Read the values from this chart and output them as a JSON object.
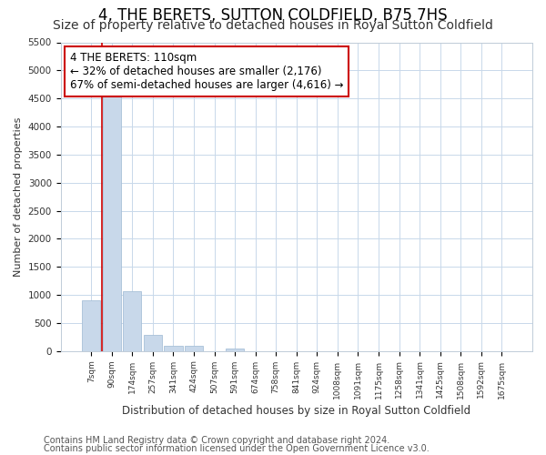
{
  "title": "4, THE BERETS, SUTTON COLDFIELD, B75 7HS",
  "subtitle": "Size of property relative to detached houses in Royal Sutton Coldfield",
  "xlabel": "Distribution of detached houses by size in Royal Sutton Coldfield",
  "ylabel": "Number of detached properties",
  "footnote1": "Contains HM Land Registry data © Crown copyright and database right 2024.",
  "footnote2": "Contains public sector information licensed under the Open Government Licence v3.0.",
  "categories": [
    "7sqm",
    "90sqm",
    "174sqm",
    "257sqm",
    "341sqm",
    "424sqm",
    "507sqm",
    "591sqm",
    "674sqm",
    "758sqm",
    "841sqm",
    "924sqm",
    "1008sqm",
    "1091sqm",
    "1175sqm",
    "1258sqm",
    "1341sqm",
    "1425sqm",
    "1508sqm",
    "1592sqm",
    "1675sqm"
  ],
  "values": [
    900,
    4580,
    1070,
    285,
    90,
    85,
    0,
    50,
    0,
    0,
    0,
    0,
    0,
    0,
    0,
    0,
    0,
    0,
    0,
    0,
    0
  ],
  "bar_color": "#c8d8ea",
  "bar_edge_color": "#a8c0d8",
  "vline_x": 0.5,
  "vline_color": "#cc0000",
  "annotation_text": "4 THE BERETS: 110sqm\n← 32% of detached houses are smaller (2,176)\n67% of semi-detached houses are larger (4,616) →",
  "annotation_box_color": "#ffffff",
  "annotation_box_edge": "#cc0000",
  "ylim": [
    0,
    5500
  ],
  "yticks": [
    0,
    500,
    1000,
    1500,
    2000,
    2500,
    3000,
    3500,
    4000,
    4500,
    5000,
    5500
  ],
  "grid_color": "#c8d8ea",
  "bg_color": "#ffffff",
  "title_fontsize": 12,
  "subtitle_fontsize": 10,
  "footnote_fontsize": 7
}
